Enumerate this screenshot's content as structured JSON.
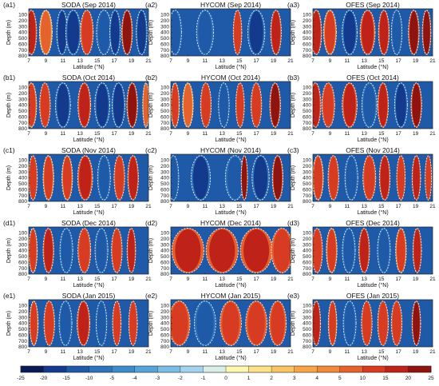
{
  "figure": {
    "colorbar": {
      "ticks": [
        -25,
        -20,
        -15,
        -10,
        -5,
        -4,
        -3,
        -2,
        -1,
        0,
        1,
        2,
        3,
        4,
        5,
        10,
        15,
        20,
        25
      ],
      "colors": [
        "#0b1a55",
        "#133a8c",
        "#1f5aa8",
        "#2f74b8",
        "#3b8cc8",
        "#57a5d8",
        "#7cbde6",
        "#a3d3f0",
        "#d9efe6",
        "#fff6b0",
        "#fde287",
        "#f9c564",
        "#f6a646",
        "#f08a3a",
        "#e6622d",
        "#d73b22",
        "#bf2218",
        "#8f1410"
      ]
    },
    "chart_data": [
      {
        "tag": "(a1)",
        "title": "SODA (Sep 2014)",
        "type": "heatmap",
        "xlabel": "Latitude (°N)",
        "ylabel": "Depth (m)",
        "xlim": [
          7,
          21
        ],
        "ylim": [
          0,
          800
        ],
        "xticks": [
          7,
          9,
          11,
          13,
          15,
          17,
          19,
          21
        ],
        "yticks": [
          100,
          200,
          300,
          400,
          500,
          600,
          700,
          800
        ],
        "features": [
          {
            "lat": 7.3,
            "w": 0.5,
            "v": 16
          },
          {
            "lat": 9.0,
            "w": 0.6,
            "v": 8
          },
          {
            "lat": 10.9,
            "w": 0.5,
            "v": -16
          },
          {
            "lat": 12.2,
            "w": 0.7,
            "v": -18
          },
          {
            "lat": 13.8,
            "w": 0.6,
            "v": 14
          },
          {
            "lat": 15.8,
            "w": 0.7,
            "v": -15
          },
          {
            "lat": 17.1,
            "w": 0.5,
            "v": -20
          },
          {
            "lat": 18.5,
            "w": 0.5,
            "v": 20
          },
          {
            "lat": 20.2,
            "w": 0.5,
            "v": -16
          }
        ]
      },
      {
        "tag": "(a2)",
        "title": "HYCOM (Sep 2014)",
        "type": "heatmap",
        "xlabel": "Latitude (°N)",
        "ylabel": "Depth (m)",
        "xlim": [
          7,
          21
        ],
        "ylim": [
          0,
          800
        ],
        "xticks": [
          7,
          9,
          11,
          13,
          15,
          17,
          19,
          21
        ],
        "yticks": [
          100,
          200,
          300,
          400,
          500,
          600,
          700,
          800
        ],
        "features": [
          {
            "lat": 7.5,
            "w": 0.6,
            "v": -12
          },
          {
            "lat": 11.0,
            "w": 0.8,
            "v": -14
          },
          {
            "lat": 14.8,
            "w": 0.4,
            "v": 14
          },
          {
            "lat": 17.0,
            "w": 0.8,
            "v": -16
          },
          {
            "lat": 19.3,
            "w": 0.5,
            "v": 18
          }
        ]
      },
      {
        "tag": "(a3)",
        "title": "OFES (Sep 2014)",
        "type": "heatmap",
        "xlabel": "Latitude (°N)",
        "ylabel": "Depth (m)",
        "xlim": [
          7,
          21
        ],
        "ylim": [
          0,
          800
        ],
        "xticks": [
          7,
          9,
          11,
          13,
          15,
          17,
          19,
          21
        ],
        "yticks": [
          100,
          200,
          300,
          400,
          500,
          600,
          700,
          800
        ],
        "features": [
          {
            "lat": 7.4,
            "w": 0.5,
            "v": 18
          },
          {
            "lat": 9.0,
            "w": 0.6,
            "v": 10
          },
          {
            "lat": 11.3,
            "w": 0.7,
            "v": -16
          },
          {
            "lat": 13.4,
            "w": 0.7,
            "v": 18
          },
          {
            "lat": 15.3,
            "w": 0.5,
            "v": 16
          },
          {
            "lat": 16.8,
            "w": 0.5,
            "v": -14
          },
          {
            "lat": 18.8,
            "w": 0.5,
            "v": 22
          },
          {
            "lat": 20.3,
            "w": 0.4,
            "v": 20
          }
        ]
      },
      {
        "tag": "(b1)",
        "title": "SODA (Oct 2014)",
        "type": "heatmap",
        "xlabel": "Latitude (°N)",
        "ylabel": "Depth (m)",
        "xlim": [
          7,
          21
        ],
        "ylim": [
          0,
          800
        ],
        "xticks": [
          7,
          9,
          11,
          13,
          15,
          17,
          19,
          21
        ],
        "yticks": [
          100,
          200,
          300,
          400,
          500,
          600,
          700,
          800
        ],
        "features": [
          {
            "lat": 7.3,
            "w": 0.5,
            "v": 10
          },
          {
            "lat": 8.9,
            "w": 0.5,
            "v": 14
          },
          {
            "lat": 11.0,
            "w": 0.7,
            "v": -16
          },
          {
            "lat": 13.5,
            "w": 0.6,
            "v": 16
          },
          {
            "lat": 15.6,
            "w": 0.7,
            "v": -18
          },
          {
            "lat": 17.5,
            "w": 0.6,
            "v": -16
          },
          {
            "lat": 19.1,
            "w": 0.5,
            "v": 20
          },
          {
            "lat": 20.7,
            "w": 0.3,
            "v": 8
          }
        ]
      },
      {
        "tag": "(b2)",
        "title": "HYCOM (Oct 2014)",
        "type": "heatmap",
        "xlabel": "Latitude (°N)",
        "ylabel": "Depth (m)",
        "xlim": [
          7,
          21
        ],
        "ylim": [
          0,
          800
        ],
        "xticks": [
          7,
          9,
          11,
          13,
          15,
          17,
          19,
          21
        ],
        "yticks": [
          100,
          200,
          300,
          400,
          500,
          600,
          700,
          800
        ],
        "features": [
          {
            "lat": 7.5,
            "w": 0.4,
            "v": 10
          },
          {
            "lat": 9.0,
            "w": 0.5,
            "v": 8
          },
          {
            "lat": 11.1,
            "w": 0.5,
            "v": 12
          },
          {
            "lat": 13.2,
            "w": 0.5,
            "v": -14
          },
          {
            "lat": 15.1,
            "w": 0.4,
            "v": 14
          },
          {
            "lat": 17.0,
            "w": 0.5,
            "v": 12
          },
          {
            "lat": 19.2,
            "w": 0.5,
            "v": 22
          }
        ]
      },
      {
        "tag": "(b3)",
        "title": "OFES (Oct 2014)",
        "type": "heatmap",
        "xlabel": "Latitude (°N)",
        "ylabel": "Depth (m)",
        "xlim": [
          7,
          21
        ],
        "ylim": [
          0,
          800
        ],
        "xticks": [
          7,
          9,
          11,
          13,
          15,
          17,
          19,
          21
        ],
        "yticks": [
          100,
          200,
          300,
          400,
          500,
          600,
          700,
          800
        ],
        "features": [
          {
            "lat": 7.3,
            "w": 0.5,
            "v": 18
          },
          {
            "lat": 8.8,
            "w": 0.6,
            "v": 14
          },
          {
            "lat": 11.3,
            "w": 0.7,
            "v": 18
          },
          {
            "lat": 13.6,
            "w": 0.7,
            "v": -14
          },
          {
            "lat": 15.2,
            "w": 0.5,
            "v": 18
          },
          {
            "lat": 17.3,
            "w": 0.6,
            "v": -16
          },
          {
            "lat": 19.1,
            "w": 0.5,
            "v": 20
          }
        ]
      },
      {
        "tag": "(c1)",
        "title": "SODA (Nov 2014)",
        "type": "heatmap",
        "xlabel": "Latitude (°N)",
        "ylabel": "Depth (m)",
        "xlim": [
          7,
          21
        ],
        "ylim": [
          0,
          800
        ],
        "xticks": [
          7,
          9,
          11,
          13,
          15,
          17,
          19,
          21
        ],
        "yticks": [
          100,
          200,
          300,
          400,
          500,
          600,
          700,
          800
        ],
        "features": [
          {
            "lat": 7.5,
            "w": 0.4,
            "v": 12
          },
          {
            "lat": 9.3,
            "w": 0.5,
            "v": 10
          },
          {
            "lat": 11.5,
            "w": 0.5,
            "v": 10
          },
          {
            "lat": 13.6,
            "w": 0.7,
            "v": 16
          },
          {
            "lat": 15.8,
            "w": 0.6,
            "v": -14
          },
          {
            "lat": 17.6,
            "w": 0.5,
            "v": 12
          },
          {
            "lat": 19.2,
            "w": 0.5,
            "v": 18
          }
        ]
      },
      {
        "tag": "(c2)",
        "title": "HYCOM (Nov 2014)",
        "type": "heatmap",
        "xlabel": "Latitude (°N)",
        "ylabel": "Depth (m)",
        "xlim": [
          7,
          21
        ],
        "ylim": [
          0,
          800
        ],
        "xticks": [
          7,
          9,
          11,
          13,
          15,
          17,
          19,
          21
        ],
        "yticks": [
          100,
          200,
          300,
          400,
          500,
          600,
          700,
          800
        ],
        "features": [
          {
            "lat": 7.3,
            "w": 0.5,
            "v": -14
          },
          {
            "lat": 10.5,
            "w": 0.9,
            "v": -16
          },
          {
            "lat": 14.5,
            "w": 0.9,
            "v": -14
          },
          {
            "lat": 15.6,
            "w": 0.3,
            "v": 20
          },
          {
            "lat": 17.5,
            "w": 0.8,
            "v": -16
          },
          {
            "lat": 19.5,
            "w": 0.5,
            "v": 22
          }
        ]
      },
      {
        "tag": "(c3)",
        "title": "OFES (Nov 2014)",
        "type": "heatmap",
        "xlabel": "Latitude (°N)",
        "ylabel": "Depth (m)",
        "xlim": [
          7,
          21
        ],
        "ylim": [
          0,
          800
        ],
        "xticks": [
          7,
          9,
          11,
          13,
          15,
          17,
          19,
          21
        ],
        "yticks": [
          100,
          200,
          300,
          400,
          500,
          600,
          700,
          800
        ],
        "features": [
          {
            "lat": 7.6,
            "w": 0.5,
            "v": 10
          },
          {
            "lat": 9.4,
            "w": 0.5,
            "v": 12
          },
          {
            "lat": 11.5,
            "w": 0.6,
            "v": -14
          },
          {
            "lat": 13.6,
            "w": 0.6,
            "v": 14
          },
          {
            "lat": 15.4,
            "w": 0.5,
            "v": 16
          },
          {
            "lat": 17.3,
            "w": 0.4,
            "v": 14
          },
          {
            "lat": 19.1,
            "w": 0.4,
            "v": 16
          },
          {
            "lat": 20.5,
            "w": 0.3,
            "v": 12
          }
        ]
      },
      {
        "tag": "(d1)",
        "title": "SODA (Dec 2014)",
        "type": "heatmap",
        "xlabel": "Latitude (°N)",
        "ylabel": "Depth (m)",
        "xlim": [
          7,
          21
        ],
        "ylim": [
          0,
          800
        ],
        "xticks": [
          7,
          9,
          11,
          13,
          15,
          17,
          19,
          21
        ],
        "yticks": [
          100,
          200,
          300,
          400,
          500,
          600,
          700,
          800
        ],
        "features": [
          {
            "lat": 7.5,
            "w": 0.4,
            "v": 10
          },
          {
            "lat": 9.3,
            "w": 0.5,
            "v": 16
          },
          {
            "lat": 11.4,
            "w": 0.6,
            "v": -14
          },
          {
            "lat": 13.5,
            "w": 0.6,
            "v": 14
          },
          {
            "lat": 15.5,
            "w": 0.6,
            "v": -14
          },
          {
            "lat": 17.3,
            "w": 0.5,
            "v": 12
          },
          {
            "lat": 19.0,
            "w": 0.4,
            "v": 16
          }
        ]
      },
      {
        "tag": "(d2)",
        "title": "HYCOM (Dec 2014)",
        "type": "heatmap",
        "xlabel": "Latitude (°N)",
        "ylabel": "Depth (m)",
        "xlim": [
          7,
          21
        ],
        "ylim": [
          0,
          800
        ],
        "xticks": [
          7,
          9,
          11,
          13,
          15,
          17,
          19,
          21
        ],
        "yticks": [
          100,
          200,
          300,
          400,
          500,
          600,
          700,
          800
        ],
        "features": [
          {
            "lat": 9.0,
            "w": 1.5,
            "v": 16
          },
          {
            "lat": 13.0,
            "w": 1.5,
            "v": 16
          },
          {
            "lat": 17.0,
            "w": 1.5,
            "v": 16
          },
          {
            "lat": 20.0,
            "w": 1.0,
            "v": 14
          }
        ]
      },
      {
        "tag": "(d3)",
        "title": "OFES (Dec 2014)",
        "type": "heatmap",
        "xlabel": "Latitude (°N)",
        "ylabel": "Depth (m)",
        "xlim": [
          7,
          21
        ],
        "ylim": [
          0,
          800
        ],
        "xticks": [
          7,
          9,
          11,
          13,
          15,
          17,
          19,
          21
        ],
        "yticks": [
          100,
          200,
          300,
          400,
          500,
          600,
          700,
          800
        ],
        "features": [
          {
            "lat": 7.5,
            "w": 0.5,
            "v": 12
          },
          {
            "lat": 9.2,
            "w": 0.5,
            "v": 10
          },
          {
            "lat": 11.2,
            "w": 0.6,
            "v": -14
          },
          {
            "lat": 13.0,
            "w": 0.5,
            "v": 18
          },
          {
            "lat": 15.3,
            "w": 0.6,
            "v": -14
          },
          {
            "lat": 17.3,
            "w": 0.5,
            "v": 10
          },
          {
            "lat": 19.2,
            "w": 0.4,
            "v": 16
          }
        ]
      },
      {
        "tag": "(e1)",
        "title": "SODA (Jan 2015)",
        "type": "heatmap",
        "xlabel": "Latitude (°N)",
        "ylabel": "Depth (m)",
        "xlim": [
          7,
          21
        ],
        "ylim": [
          0,
          800
        ],
        "xticks": [
          7,
          9,
          11,
          13,
          15,
          17,
          19,
          21
        ],
        "yticks": [
          100,
          200,
          300,
          400,
          500,
          600,
          700,
          800
        ],
        "features": [
          {
            "lat": 7.6,
            "w": 0.4,
            "v": 10
          },
          {
            "lat": 9.4,
            "w": 0.5,
            "v": 14
          },
          {
            "lat": 11.3,
            "w": 0.6,
            "v": -14
          },
          {
            "lat": 13.4,
            "w": 0.6,
            "v": 16
          },
          {
            "lat": 15.5,
            "w": 0.5,
            "v": -14
          },
          {
            "lat": 17.3,
            "w": 0.4,
            "v": 12
          },
          {
            "lat": 19.2,
            "w": 0.4,
            "v": 14
          }
        ]
      },
      {
        "tag": "(e2)",
        "title": "HYCOM (Jan 2015)",
        "type": "heatmap",
        "xlabel": "Latitude (°N)",
        "ylabel": "Depth (m)",
        "xlim": [
          7,
          21
        ],
        "ylim": [
          0,
          800
        ],
        "xticks": [
          7,
          9,
          11,
          13,
          15,
          17,
          19,
          21
        ],
        "yticks": [
          100,
          200,
          300,
          400,
          500,
          600,
          700,
          800
        ],
        "features": [
          {
            "lat": 8.0,
            "w": 1.0,
            "v": 12
          },
          {
            "lat": 11.0,
            "w": 1.0,
            "v": -12
          },
          {
            "lat": 14.0,
            "w": 1.0,
            "v": 14
          },
          {
            "lat": 17.0,
            "w": 1.0,
            "v": 14
          },
          {
            "lat": 19.5,
            "w": 0.8,
            "v": 12
          }
        ]
      },
      {
        "tag": "(e3)",
        "title": "OFES (Jan 2015)",
        "type": "heatmap",
        "xlabel": "Latitude (°N)",
        "ylabel": "Depth (m)",
        "xlim": [
          7,
          21
        ],
        "ylim": [
          0,
          800
        ],
        "xticks": [
          7,
          9,
          11,
          13,
          15,
          17,
          19,
          21
        ],
        "yticks": [
          100,
          200,
          300,
          400,
          500,
          600,
          700,
          800
        ],
        "features": [
          {
            "lat": 7.4,
            "w": 0.4,
            "v": 16
          },
          {
            "lat": 9.3,
            "w": 0.4,
            "v": 10
          },
          {
            "lat": 11.3,
            "w": 0.6,
            "v": -14
          },
          {
            "lat": 13.3,
            "w": 0.5,
            "v": 14
          },
          {
            "lat": 15.2,
            "w": 0.5,
            "v": 12
          },
          {
            "lat": 16.8,
            "w": 0.5,
            "v": 14
          },
          {
            "lat": 19.1,
            "w": 0.4,
            "v": 20
          }
        ]
      }
    ]
  }
}
